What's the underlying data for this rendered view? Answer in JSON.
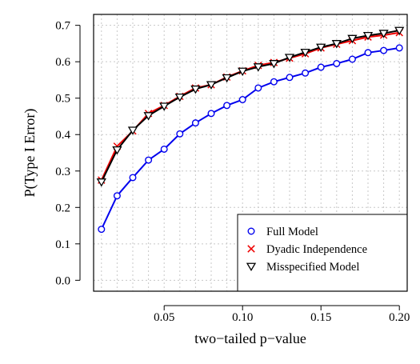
{
  "chart_data": {
    "type": "line",
    "title": "",
    "xlabel": "two−tailed p−value",
    "ylabel": "P(Type I Error)",
    "xlim": [
      0.005,
      0.205
    ],
    "ylim": [
      -0.03,
      0.73
    ],
    "grid": true,
    "legend_position": "bottom-right",
    "x_ticks": [
      0.05,
      0.1,
      0.15,
      0.2
    ],
    "x_tick_labels": [
      "0.05",
      "0.10",
      "0.15",
      "0.20"
    ],
    "y_ticks": [
      0.0,
      0.1,
      0.2,
      0.3,
      0.4,
      0.5,
      0.6,
      0.7
    ],
    "y_tick_labels": [
      "0.0",
      "0.1",
      "0.2",
      "0.3",
      "0.4",
      "0.5",
      "0.6",
      "0.7"
    ],
    "x": [
      0.01,
      0.02,
      0.03,
      0.04,
      0.05,
      0.06,
      0.07,
      0.08,
      0.09,
      0.1,
      0.11,
      0.12,
      0.13,
      0.14,
      0.15,
      0.16,
      0.17,
      0.18,
      0.19,
      0.2
    ],
    "series": [
      {
        "name": "Full Model",
        "color": "#0000ee",
        "marker": "circle",
        "values": [
          0.14,
          0.232,
          0.282,
          0.33,
          0.36,
          0.402,
          0.432,
          0.458,
          0.48,
          0.496,
          0.528,
          0.545,
          0.557,
          0.569,
          0.585,
          0.595,
          0.607,
          0.625,
          0.631,
          0.638
        ]
      },
      {
        "name": "Dyadic Independence",
        "color": "#ee0000",
        "marker": "x",
        "values": [
          0.275,
          0.368,
          0.41,
          0.458,
          0.48,
          0.505,
          0.528,
          0.537,
          0.558,
          0.575,
          0.59,
          0.598,
          0.61,
          0.622,
          0.638,
          0.648,
          0.658,
          0.668,
          0.673,
          0.68
        ]
      },
      {
        "name": "Misspecified Model",
        "color": "#000000",
        "marker": "triangle-down",
        "values": [
          0.27,
          0.358,
          0.412,
          0.452,
          0.478,
          0.503,
          0.525,
          0.537,
          0.556,
          0.574,
          0.586,
          0.595,
          0.612,
          0.626,
          0.64,
          0.65,
          0.664,
          0.672,
          0.678,
          0.686
        ]
      }
    ]
  }
}
